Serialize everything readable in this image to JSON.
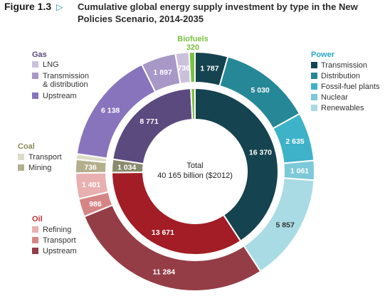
{
  "figure": {
    "label": "Figure 1.3",
    "arrow": "▷",
    "title": "Cumulative global energy supply investment by type in the New Policies Scenario, 2014-2035"
  },
  "center": {
    "line1": "Total",
    "line2": "40 165 billion ($2012)"
  },
  "chart_data": {
    "type": "pie",
    "title": "Cumulative global energy supply investment by type in the New Policies Scenario, 2014-2035",
    "unit": "billion ($2012)",
    "total": 40165,
    "inner_ring": [
      {
        "name": "Power",
        "value": 16370,
        "color": "#15434f"
      },
      {
        "name": "Oil",
        "value": 13671,
        "color": "#a21d25"
      },
      {
        "name": "Coal",
        "value": 1034,
        "color": "#8a8a6e"
      },
      {
        "name": "Gas",
        "value": 8771,
        "color": "#5b4a7e"
      },
      {
        "name": "Biofuels",
        "value": 320,
        "color": "#7ac043"
      }
    ],
    "outer_ring": [
      {
        "group": "Power",
        "name": "Transmission",
        "value": 1787,
        "color": "#15434f"
      },
      {
        "group": "Power",
        "name": "Distribution",
        "value": 5030,
        "color": "#268896"
      },
      {
        "group": "Power",
        "name": "Fossil-fuel plants",
        "value": 2635,
        "color": "#3eb2c9"
      },
      {
        "group": "Power",
        "name": "Nuclear",
        "value": 1061,
        "color": "#7cc9d8"
      },
      {
        "group": "Power",
        "name": "Renewables",
        "value": 5857,
        "color": "#a8dbe3"
      },
      {
        "group": "Oil",
        "name": "Upstream",
        "value": 11284,
        "color": "#943d46"
      },
      {
        "group": "Oil",
        "name": "Transport",
        "value": 986,
        "color": "#d68585"
      },
      {
        "group": "Oil",
        "name": "Refining",
        "value": 1401,
        "color": "#e8b0b0"
      },
      {
        "group": "Coal",
        "name": "Mining",
        "value": 736,
        "color": "#b3ae8c"
      },
      {
        "group": "Coal",
        "name": "Transport",
        "value": 298,
        "color": "#dedbc8"
      },
      {
        "group": "Gas",
        "name": "Upstream",
        "value": 6138,
        "color": "#8874bd"
      },
      {
        "group": "Gas",
        "name": "Transmission & distribution",
        "value": 1897,
        "color": "#a798c7"
      },
      {
        "group": "Gas",
        "name": "LNG",
        "value": 736,
        "color": "#cbc1dc"
      },
      {
        "group": "Biofuels",
        "name": "Biofuels",
        "value": 320,
        "color": "#7ac043"
      }
    ]
  },
  "legend": {
    "power": {
      "title": "Power",
      "color": "#2aa6c7",
      "items": [
        {
          "label": "Transmission",
          "color": "#15434f"
        },
        {
          "label": "Distribution",
          "color": "#268896"
        },
        {
          "label": "Fossil-fuel plants",
          "color": "#3eb2c9"
        },
        {
          "label": "Nuclear",
          "color": "#7cc9d8"
        },
        {
          "label": "Renewables",
          "color": "#a8dbe3"
        }
      ]
    },
    "gas": {
      "title": "Gas",
      "color": "#5b4a7e",
      "items": [
        {
          "label": "LNG",
          "color": "#cbc1dc"
        },
        {
          "label": "Transmission",
          "label2": "& distribution",
          "color": "#a798c7"
        },
        {
          "label": "Upstream",
          "color": "#8874bd"
        }
      ]
    },
    "coal": {
      "title": "Coal",
      "color": "#8a8a5a",
      "items": [
        {
          "label": "Transport",
          "color": "#dedbc8"
        },
        {
          "label": "Mining",
          "color": "#b3ae8c"
        }
      ]
    },
    "oil": {
      "title": "Oil",
      "color": "#b8323a",
      "items": [
        {
          "label": "Refining",
          "color": "#e8b0b0"
        },
        {
          "label": "Transport",
          "color": "#d68585"
        },
        {
          "label": "Upstream",
          "color": "#943d46"
        }
      ]
    },
    "biofuels": {
      "title": "Biofuels",
      "value": "320",
      "color": "#7ac043"
    }
  }
}
